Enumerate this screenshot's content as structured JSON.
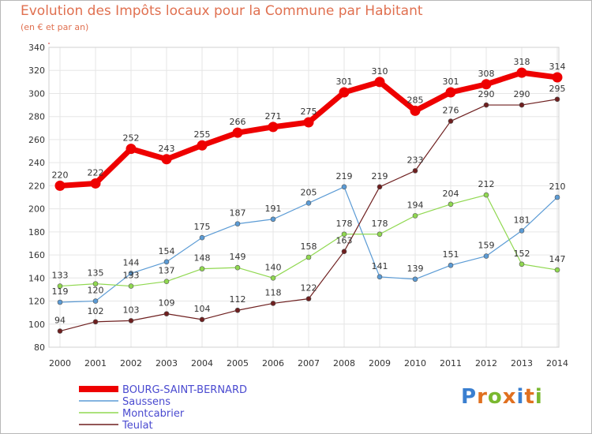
{
  "title": "Evolution des Impôts locaux pour la Commune par Habitant",
  "subtitle": "(en € et par an)",
  "logo": {
    "text": "Proxiti",
    "letter_colors": [
      "#3a7fd0",
      "#e07020",
      "#7ab830",
      "#e07020",
      "#3a7fd0",
      "#e07020",
      "#7ab830"
    ]
  },
  "chart_data": {
    "type": "line",
    "title": "Evolution des Impôts locaux pour la Commune par Habitant",
    "subtitle": "(en € et par an)",
    "x": [
      "2000",
      "2001",
      "2002",
      "2003",
      "2004",
      "2005",
      "2006",
      "2007",
      "2008",
      "2009",
      "2010",
      "2011",
      "2012",
      "2013",
      "2014"
    ],
    "ylim": [
      80,
      340
    ],
    "yticks": [
      80,
      100,
      120,
      140,
      160,
      180,
      200,
      220,
      240,
      260,
      280,
      300,
      320,
      340
    ],
    "grid": true,
    "legend_position": "bottom-left",
    "series": [
      {
        "name": "BOURG-SAINT-BERNARD",
        "color": "#ee0000",
        "values": [
          220,
          222,
          252,
          243,
          255,
          266,
          271,
          275,
          301,
          310,
          285,
          301,
          308,
          318,
          314
        ]
      },
      {
        "name": "Saussens",
        "color": "#5b9bd5",
        "values": [
          119,
          120,
          144,
          154,
          175,
          187,
          191,
          205,
          219,
          141,
          139,
          151,
          159,
          181,
          210
        ]
      },
      {
        "name": "Montcabrier",
        "color": "#90d850",
        "values": [
          133,
          135,
          133,
          137,
          148,
          149,
          140,
          158,
          178,
          178,
          194,
          204,
          212,
          152,
          147
        ]
      },
      {
        "name": "Teulat",
        "color": "#6e1f1f",
        "values": [
          94,
          102,
          103,
          109,
          104,
          112,
          118,
          122,
          163,
          219,
          233,
          276,
          290,
          290,
          295
        ]
      }
    ]
  }
}
